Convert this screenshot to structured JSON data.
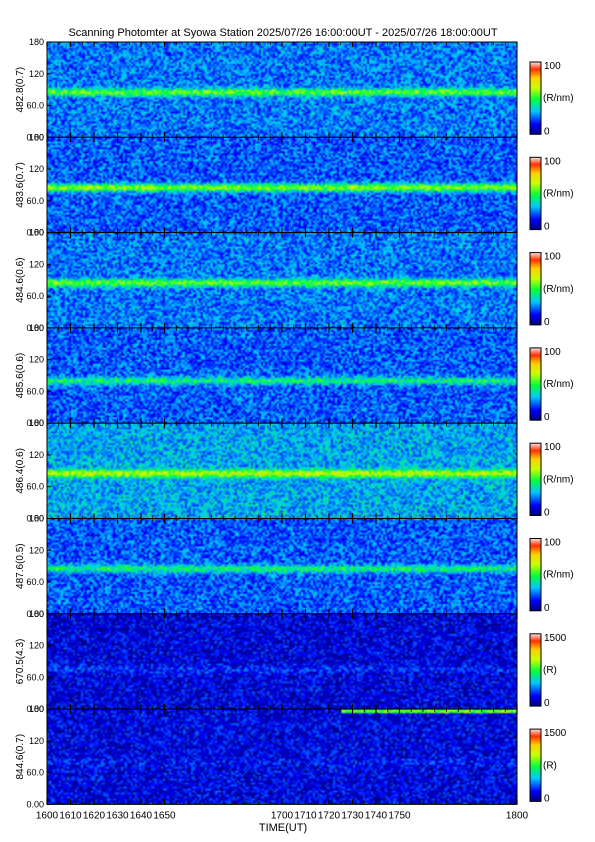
{
  "title": "Scanning Photomter at Syowa Station 2025/07/26 16:00:00UT - 2025/07/26 18:00:00UT",
  "chart_data": {
    "type": "heatmap",
    "title": "Scanning Photomter at Syowa Station 2025/07/26 16:00:00UT - 2025/07/26 18:00:00UT",
    "xlabel": "TIME(UT)",
    "xticks": [
      "1600",
      "1610",
      "1620",
      "1630",
      "1640",
      "1650",
      "1700",
      "1710",
      "1720",
      "1730",
      "1740",
      "1750",
      "1800"
    ],
    "xlim": [
      1600,
      1800
    ],
    "yticks": [
      "0.00",
      "60.0",
      "120",
      "180"
    ],
    "ylim": [
      0,
      180
    ],
    "grid": false,
    "colorscale": [
      "#00007a",
      "#0000ff",
      "#00c8ff",
      "#00ff3c",
      "#c8ff00",
      "#ffd000",
      "#ff3000",
      "#ffe4e4"
    ],
    "panels": [
      {
        "ylabel": "482.8(0.7)",
        "unit": "(R/nm)",
        "cbar_ticks": [
          "100",
          "0"
        ],
        "cbar_max": 100,
        "band_center_deg": 85,
        "band_intensity": 55,
        "background_intensity": 25
      },
      {
        "ylabel": "483.6(0.7)",
        "unit": "(R/nm)",
        "cbar_ticks": [
          "100",
          "0"
        ],
        "cbar_max": 100,
        "band_center_deg": 85,
        "band_intensity": 60,
        "background_intensity": 22
      },
      {
        "ylabel": "484.6(0.6)",
        "unit": "(R/nm)",
        "cbar_ticks": [
          "100",
          "0"
        ],
        "cbar_max": 100,
        "band_center_deg": 85,
        "band_intensity": 55,
        "background_intensity": 25
      },
      {
        "ylabel": "485.6(0.6)",
        "unit": "(R/nm)",
        "cbar_ticks": [
          "100",
          "0"
        ],
        "cbar_max": 100,
        "band_center_deg": 80,
        "band_intensity": 45,
        "background_intensity": 22
      },
      {
        "ylabel": "486.4(0.6)",
        "unit": "(R/nm)",
        "cbar_ticks": [
          "100",
          "0"
        ],
        "cbar_max": 100,
        "band_center_deg": 85,
        "band_intensity": 65,
        "background_intensity": 30
      },
      {
        "ylabel": "487.6(0.5)",
        "unit": "(R/nm)",
        "cbar_ticks": [
          "100",
          "0"
        ],
        "cbar_max": 100,
        "band_center_deg": 85,
        "band_intensity": 45,
        "background_intensity": 22
      },
      {
        "ylabel": "670.5(4.3)",
        "unit": "(R)",
        "cbar_ticks": [
          "1500",
          "0"
        ],
        "cbar_max": 1500,
        "band_center_deg": 75,
        "band_intensity": 260,
        "background_intensity": 160
      },
      {
        "ylabel": "844.6(0.7)",
        "unit": "(R)",
        "cbar_ticks": [
          "1500",
          "0"
        ],
        "cbar_max": 1500,
        "band_center_deg": 80,
        "band_intensity": 220,
        "background_intensity": 170,
        "edge_emission_start": 1725,
        "edge_emission_intensity": 800
      }
    ]
  }
}
